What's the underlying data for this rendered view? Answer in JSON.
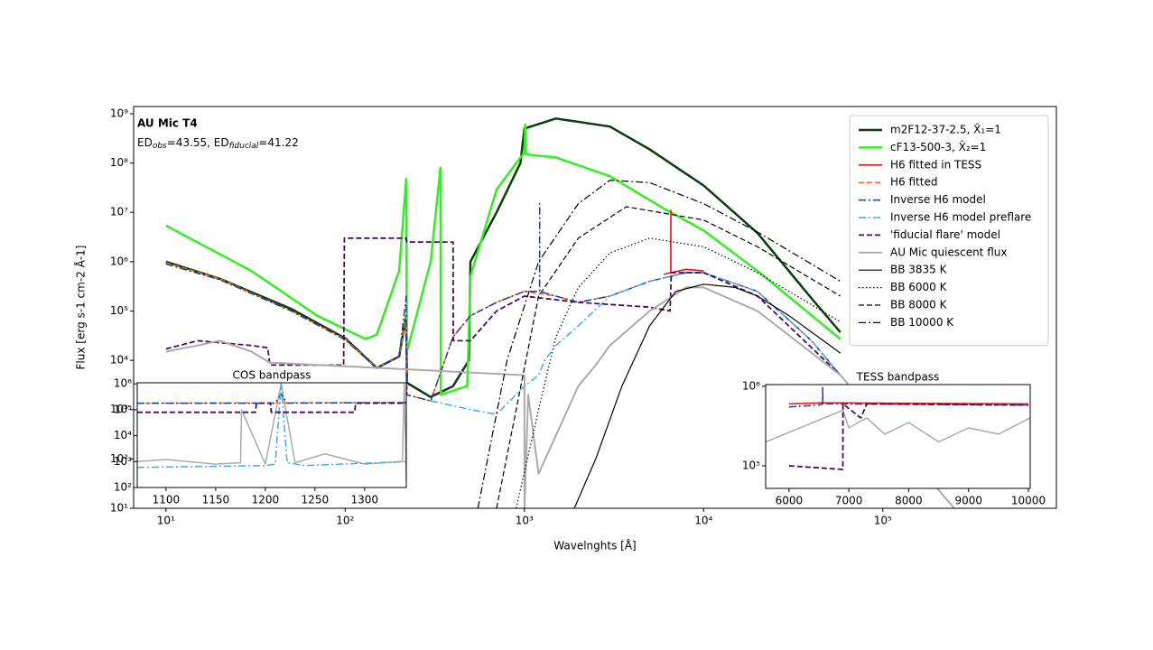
{
  "chart_data": [
    {
      "type": "line",
      "title": "AU Mic T4",
      "subtitle_parts": [
        "ED",
        "obs",
        "=43.55, ED",
        "fiducial",
        "=41.22"
      ],
      "x_label": "Wavelnghts [Å]",
      "y_label": "Flux [erg s-1 cm-2 Å-1]",
      "xscale": "log",
      "yscale": "log",
      "xlim": [
        6.6,
        930000
      ],
      "ylim": [
        10,
        1400000000
      ],
      "xticks": [
        {
          "value": 10,
          "label": "10¹"
        },
        {
          "value": 100,
          "label": "10²"
        },
        {
          "value": 1000,
          "label": "10³"
        },
        {
          "value": 10000,
          "label": "10⁴"
        },
        {
          "value": 100000,
          "label": "10⁵"
        }
      ],
      "yticks": [
        {
          "value": 10,
          "label": "10¹"
        },
        {
          "value": 100,
          "label": "10²"
        },
        {
          "value": 1000,
          "label": "10³"
        },
        {
          "value": 10000,
          "label": "10⁴"
        },
        {
          "value": 100000,
          "label": "10⁵"
        },
        {
          "value": 1000000,
          "label": "10⁶"
        },
        {
          "value": 10000000,
          "label": "10⁷"
        },
        {
          "value": 100000000,
          "label": "10⁸"
        },
        {
          "value": 1000000000,
          "label": "10⁹"
        }
      ],
      "legend": "upper right",
      "series": [
        {
          "name": "m2F12-37-2.5, X̂₁=1",
          "color": "#0b3d0b",
          "dash": "solid",
          "width": 2.5,
          "x": [
            10,
            20,
            50,
            100,
            150,
            200,
            219,
            221,
            300,
            400,
            490,
            500,
            700,
            950,
            1000,
            1500,
            3000,
            5000,
            10000,
            20000,
            40000,
            58000
          ],
          "values": [
            1000000,
            450000,
            110000,
            28000,
            7000,
            12000,
            80000,
            3500,
            1800,
            3000,
            10000,
            1000000,
            10000000,
            100000000,
            500000000,
            800000000,
            550000000,
            190000000,
            35000000,
            3800000,
            180000,
            37000
          ]
        },
        {
          "name": "cF13-500-3, X̂₂=1",
          "color": "#33ee22",
          "dash": "solid",
          "width": 2.5,
          "x": [
            10,
            30,
            70,
            130,
            150,
            200,
            219,
            221,
            300,
            340,
            342,
            480,
            500,
            700,
            950,
            1000,
            1010,
            1020,
            1500,
            3000,
            6000,
            10000,
            20000,
            58000
          ],
          "values": [
            5400000,
            650000,
            80000,
            27000,
            33000,
            650000,
            48000000,
            15000,
            1000000,
            80000000,
            2000,
            3000,
            500000,
            29000000,
            130000000,
            160000000,
            600000000,
            150000000,
            130000000,
            54000000,
            12000000,
            4300000,
            650000,
            27000
          ]
        },
        {
          "name": "H6 fitted in TESS",
          "color": "#ee1111",
          "dash": "solid",
          "width": 1.6,
          "x": [
            6000,
            6560,
            6563,
            6566,
            8000,
            10000
          ],
          "values": [
            550000,
            600000,
            11000000,
            600000,
            700000,
            650000
          ]
        },
        {
          "name": "H6 fitted",
          "color": "#ff6a13",
          "dash": "dashed",
          "width": 1.5,
          "x": [
            10,
            20,
            50,
            100,
            150,
            200,
            219,
            221,
            300,
            400,
            500,
            700,
            1000,
            1500,
            2000,
            3000,
            5000,
            8000,
            10000,
            20000,
            40000,
            58000
          ],
          "values": [
            950000,
            450000,
            100000,
            27000,
            7000,
            12000,
            80000,
            2000,
            1500,
            30000,
            80000,
            150000,
            250000,
            200000,
            150000,
            200000,
            400000,
            600000,
            600000,
            250000,
            25000,
            5000
          ]
        },
        {
          "name": "Inverse H6 model",
          "color": "#1a3fa0",
          "dash": "dashdot",
          "width": 1.5,
          "x": [
            10,
            20,
            50,
            100,
            150,
            200,
            219,
            221,
            300,
            400,
            500,
            700,
            1000,
            1215,
            1216,
            1217,
            1500,
            2000,
            3000,
            5000,
            8000,
            10000,
            20000,
            40000,
            58000
          ],
          "values": [
            900000,
            430000,
            100000,
            26000,
            7000,
            12000,
            200000,
            2000,
            1500,
            30000,
            80000,
            150000,
            250000,
            250000,
            15000000,
            250000,
            200000,
            150000,
            200000,
            400000,
            600000,
            600000,
            250000,
            25000,
            5000
          ]
        },
        {
          "name": "Inverse H6 model preflare",
          "color": "#3ab0f0",
          "dash": "dashdot",
          "width": 1.5,
          "x": [
            300,
            400,
            500,
            700,
            1000,
            1200,
            1300,
            1500,
            2000,
            3000,
            5000,
            8000,
            10000,
            20000,
            40000,
            58000
          ],
          "values": [
            1500,
            1200,
            1000,
            800,
            3000,
            5000,
            10000,
            20000,
            50000,
            200000,
            400000,
            600000,
            600000,
            250000,
            25000,
            5000
          ]
        },
        {
          "name": "'fiducial flare' model",
          "color": "#4b0a5a",
          "dash": "dashed",
          "width": 1.8,
          "x": [
            10,
            15,
            30,
            37,
            38,
            98,
            99,
            200,
            219,
            221,
            400,
            401,
            500,
            700,
            1000,
            2000,
            5000,
            6500,
            6600,
            10000,
            20000,
            58000
          ],
          "values": [
            17000,
            25000,
            20000,
            18000,
            8000,
            8000,
            3000000,
            3000000,
            3000000,
            2500000,
            2500000,
            25000,
            25000,
            100000,
            200000,
            150000,
            120000,
            100000,
            600000,
            600000,
            200000,
            5000
          ]
        },
        {
          "name": "AU Mic quiescent flux",
          "color": "#aaaaaa",
          "dash": "solid",
          "width": 2,
          "x": [
            10,
            15,
            20,
            30,
            38,
            1000,
            1001,
            1050,
            1200,
            1500,
            2000,
            2500,
            3000,
            5000,
            8000,
            10000,
            20000,
            58000,
            100000,
            250000
          ],
          "values": [
            15000,
            20000,
            25000,
            15000,
            9000,
            5000,
            10,
            2000,
            50,
            300,
            3000,
            8000,
            20000,
            100000,
            300000,
            300000,
            100000,
            5000,
            500,
            10
          ]
        },
        {
          "name": "BB 3835 K",
          "color": "#000000",
          "dash": "solid",
          "width": 1.2,
          "x": [
            1900,
            2500,
            3500,
            5000,
            7000,
            10000,
            15000,
            20000,
            30000,
            58000
          ],
          "values": [
            10,
            100,
            3000,
            50000,
            250000,
            350000,
            300000,
            200000,
            80000,
            14000
          ]
        },
        {
          "name": "BB 6000 K",
          "color": "#000000",
          "dash": "dotted",
          "width": 1.2,
          "x": [
            900,
            1200,
            1500,
            2000,
            3000,
            5000,
            10000,
            20000,
            58000
          ],
          "values": [
            10,
            1000,
            30000,
            300000,
            1500000,
            3000000,
            2000000,
            600000,
            60000
          ]
        },
        {
          "name": "BB 8000 K",
          "color": "#000000",
          "dash": "dashed",
          "width": 1.2,
          "x": [
            700,
            900,
            1200,
            2000,
            3700,
            10000,
            20000,
            58000
          ],
          "values": [
            10,
            1000,
            200000,
            3000000,
            13000000,
            7000000,
            2000000,
            200000
          ]
        },
        {
          "name": "BB 10000 K",
          "color": "#000000",
          "dash": "dashdot",
          "width": 1.2,
          "x": [
            550,
            800,
            1200,
            2000,
            3000,
            5000,
            10000,
            20000,
            58000
          ],
          "values": [
            10,
            10000,
            1000000,
            15000000,
            45000000,
            40000000,
            15000000,
            4000000,
            400000
          ]
        }
      ]
    },
    {
      "type": "line",
      "title": "COS bandpass",
      "xscale": "linear",
      "yscale": "log",
      "xlim": [
        1071,
        1342
      ],
      "ylim": [
        100,
        1100000
      ],
      "xticks": [
        1100,
        1150,
        1200,
        1250,
        1300
      ],
      "yticks": [
        {
          "value": 100,
          "label": "10²"
        },
        {
          "value": 1000,
          "label": "10³"
        },
        {
          "value": 10000,
          "label": "10⁴"
        },
        {
          "value": 100000,
          "label": "10⁵"
        },
        {
          "value": 1000000,
          "label": "10⁶"
        }
      ],
      "series": [
        {
          "color": "#aaaaaa",
          "dash": "solid",
          "width": 1.5,
          "x": [
            1071,
            1100,
            1150,
            1175,
            1176,
            1200,
            1216,
            1230,
            1260,
            1300,
            1338,
            1340,
            1342
          ],
          "values": [
            1000,
            1200,
            800,
            900,
            100000,
            800,
            1000000,
            900,
            2000,
            800,
            1000,
            1000000,
            200
          ]
        },
        {
          "color": "#ff6a13",
          "dash": "dashed",
          "width": 1.5,
          "x": [
            1071,
            1342
          ],
          "values": [
            180000,
            190000
          ]
        },
        {
          "color": "#1a3fa0",
          "dash": "dashdot",
          "width": 1.5,
          "x": [
            1071,
            1210,
            1216,
            1222,
            1342
          ],
          "values": [
            180000,
            180000,
            400000,
            180000,
            190000
          ]
        },
        {
          "color": "#3ab0f0",
          "dash": "dashdot",
          "width": 1.5,
          "x": [
            1071,
            1200,
            1210,
            1216,
            1222,
            1240,
            1342
          ],
          "values": [
            600,
            700,
            800,
            1000000,
            900,
            700,
            1000
          ]
        },
        {
          "color": "#4b0a5a",
          "dash": "dashed",
          "width": 1.8,
          "x": [
            1071,
            1190,
            1191,
            1205,
            1206,
            1290,
            1291,
            1342
          ],
          "values": [
            80000,
            80000,
            180000,
            180000,
            80000,
            80000,
            180000,
            180000
          ]
        }
      ]
    },
    {
      "type": "line",
      "title": "TESS bandpass",
      "xscale": "linear",
      "yscale": "log",
      "xlim": [
        5610,
        10030
      ],
      "ylim": [
        52000,
        1050000
      ],
      "xticks": [
        6000,
        7000,
        8000,
        9000,
        10000
      ],
      "yticks": [
        {
          "value": 100000,
          "label": "10⁵"
        },
        {
          "value": 1000000,
          "label": "10⁶"
        }
      ],
      "series": [
        {
          "color": "#aaaaaa",
          "dash": "solid",
          "width": 1.5,
          "x": [
            5610,
            6900,
            7000,
            7300,
            7600,
            8000,
            8500,
            9000,
            9500,
            10030
          ],
          "values": [
            200000,
            500000,
            300000,
            400000,
            250000,
            350000,
            200000,
            300000,
            250000,
            400000
          ]
        },
        {
          "color": "#ee1111",
          "dash": "solid",
          "width": 1.6,
          "x": [
            6000,
            6562,
            6563,
            6564,
            10000
          ],
          "values": [
            600000,
            620000,
            700000,
            620000,
            600000
          ]
        },
        {
          "color": "#1a3fa0",
          "dash": "dashdot",
          "width": 1.5,
          "x": [
            6000,
            6500,
            6560,
            6563,
            6566,
            7000,
            10000
          ],
          "values": [
            550000,
            580000,
            600000,
            1000000,
            600000,
            600000,
            580000
          ]
        },
        {
          "color": "#4b0a5a",
          "dash": "dashed",
          "width": 1.8,
          "x": [
            6000,
            6900,
            6901,
            7200,
            7300,
            10000
          ],
          "values": [
            100000,
            90000,
            600000,
            400000,
            600000,
            580000
          ]
        }
      ]
    }
  ]
}
